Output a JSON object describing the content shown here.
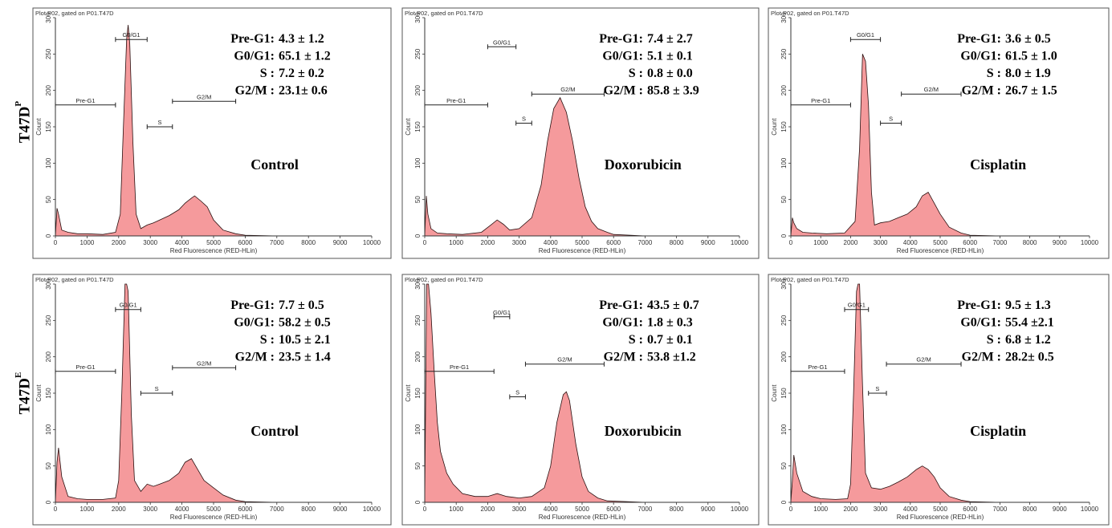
{
  "figure": {
    "rows": [
      {
        "label": "T47D",
        "superscript": "P"
      },
      {
        "label": "T47D",
        "superscript": "E"
      }
    ],
    "colors": {
      "histogram_fill": "#f59a9c",
      "histogram_stroke": "#2a1010",
      "frame": "#555555",
      "text": "#000000"
    }
  },
  "chart_data": [
    {
      "type": "area",
      "header": "Plot P02, gated on P01.T47D",
      "title": "Control",
      "xlabel": "Red Fluorescence (RED-HLin)",
      "ylabel": "Count",
      "xlim": [
        0,
        10000
      ],
      "ylim": [
        0,
        300
      ],
      "xticks": [
        "0",
        "1000",
        "2000",
        "3000",
        "4000",
        "5000",
        "6000",
        "7000",
        "8000",
        "9000",
        "10000"
      ],
      "yticks": [
        "0",
        "50",
        "100",
        "150",
        "200",
        "250",
        "300"
      ],
      "gates": [
        {
          "name": "Pre-G1",
          "start": 0,
          "end": 1900,
          "level": 180
        },
        {
          "name": "G0/G1",
          "start": 1900,
          "end": 2900,
          "level": 270
        },
        {
          "name": "S",
          "start": 2900,
          "end": 3700,
          "level": 150
        },
        {
          "name": "G2/M",
          "start": 3700,
          "end": 5700,
          "level": 185
        }
      ],
      "stats": [
        {
          "label": "Pre-G1:",
          "value": "4.3 ± 1.2"
        },
        {
          "label": "G0/G1:",
          "value": "65.1 ± 1.2"
        },
        {
          "label": "S :",
          "value": "7.2 ± 0.2"
        },
        {
          "label": "G2/M :",
          "value": "23.1± 0.6"
        }
      ],
      "x": [
        0,
        50,
        100,
        200,
        400,
        700,
        1000,
        1500,
        1900,
        2050,
        2150,
        2250,
        2300,
        2350,
        2450,
        2550,
        2700,
        2900,
        3100,
        3300,
        3600,
        3900,
        4100,
        4300,
        4400,
        4600,
        4800,
        5000,
        5300,
        5700,
        6000,
        7000,
        10000
      ],
      "y": [
        0,
        38,
        30,
        8,
        5,
        3,
        3,
        2,
        5,
        30,
        150,
        270,
        290,
        265,
        130,
        30,
        10,
        15,
        18,
        22,
        28,
        36,
        45,
        52,
        55,
        48,
        40,
        22,
        8,
        3,
        1,
        0,
        0
      ]
    },
    {
      "type": "area",
      "header": "Plot P02, gated on P01.T47D",
      "title": "Doxorubicin",
      "xlabel": "Red Fluorescence (RED-HLin)",
      "ylabel": "Count",
      "xlim": [
        0,
        10000
      ],
      "ylim": [
        0,
        300
      ],
      "xticks": [
        "0",
        "1000",
        "2000",
        "3000",
        "4000",
        "5000",
        "6000",
        "7000",
        "8000",
        "9000",
        "10000"
      ],
      "yticks": [
        "0",
        "50",
        "100",
        "150",
        "200",
        "250",
        "300"
      ],
      "gates": [
        {
          "name": "Pre-G1",
          "start": 0,
          "end": 2000,
          "level": 180
        },
        {
          "name": "G0/G1",
          "start": 2000,
          "end": 2900,
          "level": 260
        },
        {
          "name": "S",
          "start": 2900,
          "end": 3400,
          "level": 155
        },
        {
          "name": "G2/M",
          "start": 3400,
          "end": 5700,
          "level": 195
        }
      ],
      "stats": [
        {
          "label": "Pre-G1:",
          "value": "7.4 ± 2.7"
        },
        {
          "label": "G0/G1:",
          "value": "5.1 ± 0.1"
        },
        {
          "label": "S :",
          "value": "0.8 ± 0.0"
        },
        {
          "label": "G2/M :",
          "value": "85.8 ± 3.9"
        }
      ],
      "x": [
        0,
        50,
        100,
        200,
        400,
        700,
        1200,
        1800,
        2100,
        2300,
        2500,
        2700,
        3000,
        3400,
        3700,
        3900,
        4100,
        4300,
        4500,
        4700,
        4900,
        5100,
        5300,
        5500,
        5800,
        6000,
        7000,
        10000
      ],
      "y": [
        0,
        55,
        30,
        10,
        4,
        3,
        2,
        5,
        15,
        22,
        16,
        8,
        10,
        25,
        70,
        130,
        175,
        190,
        170,
        130,
        80,
        40,
        20,
        10,
        5,
        2,
        0,
        0
      ]
    },
    {
      "type": "area",
      "header": "Plot P02, gated on P01.T47D",
      "title": "Cisplatin",
      "xlabel": "Red Fluorescence (RED-HLin)",
      "ylabel": "Count",
      "xlim": [
        0,
        10000
      ],
      "ylim": [
        0,
        300
      ],
      "xticks": [
        "0",
        "1000",
        "2000",
        "3000",
        "4000",
        "5000",
        "6000",
        "7000",
        "8000",
        "9000",
        "10000"
      ],
      "yticks": [
        "0",
        "50",
        "100",
        "150",
        "200",
        "250",
        "300"
      ],
      "gates": [
        {
          "name": "Pre-G1",
          "start": 0,
          "end": 2000,
          "level": 180
        },
        {
          "name": "G0/G1",
          "start": 2000,
          "end": 3000,
          "level": 270
        },
        {
          "name": "S",
          "start": 3000,
          "end": 3700,
          "level": 155
        },
        {
          "name": "G2/M",
          "start": 3700,
          "end": 5700,
          "level": 195
        }
      ],
      "stats": [
        {
          "label": "Pre-G1:",
          "value": "3.6 ± 0.5"
        },
        {
          "label": "G0/G1:",
          "value": "61.5 ± 1.0"
        },
        {
          "label": "S :",
          "value": "8.0 ± 1.9"
        },
        {
          "label": "G2/M :",
          "value": "26.7 ± 1.5"
        }
      ],
      "x": [
        0,
        50,
        100,
        200,
        400,
        700,
        1200,
        1800,
        2150,
        2300,
        2400,
        2500,
        2600,
        2700,
        2800,
        3000,
        3300,
        3600,
        3900,
        4200,
        4400,
        4600,
        4800,
        5000,
        5300,
        5700,
        6000,
        7000,
        10000
      ],
      "y": [
        0,
        25,
        18,
        10,
        5,
        4,
        3,
        4,
        20,
        120,
        250,
        240,
        180,
        60,
        15,
        18,
        20,
        25,
        30,
        40,
        55,
        60,
        45,
        30,
        12,
        4,
        1,
        0,
        0
      ]
    },
    {
      "type": "area",
      "header": "Plot P02, gated on P01.T47D",
      "title": "Control",
      "xlabel": "Red Fluorescence (RED-HLin)",
      "ylabel": "Count",
      "xlim": [
        0,
        10000
      ],
      "ylim": [
        0,
        300
      ],
      "xticks": [
        "0",
        "1000",
        "2000",
        "3000",
        "4000",
        "5000",
        "6000",
        "7000",
        "8000",
        "9000",
        "10000"
      ],
      "yticks": [
        "0",
        "50",
        "100",
        "150",
        "200",
        "250",
        "300"
      ],
      "gates": [
        {
          "name": "Pre-G1",
          "start": 0,
          "end": 1900,
          "level": 180
        },
        {
          "name": "G0/G1",
          "start": 1900,
          "end": 2700,
          "level": 265
        },
        {
          "name": "S",
          "start": 2700,
          "end": 3700,
          "level": 150
        },
        {
          "name": "G2/M",
          "start": 3700,
          "end": 5700,
          "level": 185
        }
      ],
      "stats": [
        {
          "label": "Pre-G1:",
          "value": "7.7 ±  0.5"
        },
        {
          "label": "G0/G1:",
          "value": "58.2 ± 0.5"
        },
        {
          "label": "S :",
          "value": "10.5 ± 2.1"
        },
        {
          "label": "G2/M :",
          "value": "23.5 ± 1.4"
        }
      ],
      "x": [
        0,
        50,
        100,
        200,
        400,
        700,
        1000,
        1500,
        1900,
        2000,
        2100,
        2200,
        2250,
        2300,
        2400,
        2500,
        2700,
        2900,
        3100,
        3300,
        3600,
        3900,
        4100,
        4300,
        4500,
        4700,
        5000,
        5300,
        5700,
        6000,
        7000,
        10000
      ],
      "y": [
        0,
        55,
        75,
        35,
        8,
        5,
        4,
        4,
        6,
        30,
        150,
        300,
        310,
        290,
        120,
        30,
        15,
        25,
        22,
        25,
        30,
        40,
        55,
        60,
        45,
        30,
        20,
        10,
        3,
        1,
        0,
        0
      ]
    },
    {
      "type": "area",
      "header": "Plot P02, gated on P01.T47D",
      "title": "Doxorubicin",
      "xlabel": "Red Fluorescence (RED-HLin)",
      "ylabel": "Count",
      "xlim": [
        0,
        10000
      ],
      "ylim": [
        0,
        300
      ],
      "xticks": [
        "0",
        "1000",
        "2000",
        "3000",
        "4000",
        "5000",
        "6000",
        "7000",
        "8000",
        "9000",
        "10000"
      ],
      "yticks": [
        "0",
        "50",
        "100",
        "150",
        "200",
        "250",
        "300"
      ],
      "gates": [
        {
          "name": "Pre-G1",
          "start": 0,
          "end": 2200,
          "level": 180
        },
        {
          "name": "G0/G1",
          "start": 2200,
          "end": 2700,
          "level": 255
        },
        {
          "name": "S",
          "start": 2700,
          "end": 3200,
          "level": 145
        },
        {
          "name": "G2/M",
          "start": 3200,
          "end": 5700,
          "level": 190
        }
      ],
      "stats": [
        {
          "label": "Pre-G1:",
          "value": "43.5 ± 0.7"
        },
        {
          "label": "G0/G1:",
          "value": "1.8 ± 0.3"
        },
        {
          "label": "S :",
          "value": "0.7 ± 0.1"
        },
        {
          "label": "G2/M :",
          "value": "53.8 ±1.2"
        }
      ],
      "x": [
        0,
        60,
        120,
        200,
        300,
        400,
        500,
        700,
        900,
        1200,
        1600,
        2000,
        2300,
        2600,
        3000,
        3400,
        3800,
        4000,
        4200,
        4400,
        4500,
        4600,
        4800,
        5000,
        5200,
        5500,
        5800,
        7000,
        10000
      ],
      "y": [
        0,
        300,
        310,
        260,
        180,
        110,
        70,
        40,
        25,
        12,
        8,
        8,
        12,
        8,
        6,
        8,
        20,
        50,
        110,
        148,
        152,
        140,
        80,
        35,
        15,
        6,
        2,
        0,
        0
      ]
    },
    {
      "type": "area",
      "header": "Plot P02, gated on P01.T47D",
      "title": "Cisplatin",
      "xlabel": "Red Fluorescence (RED-HLin)",
      "ylabel": "Count",
      "xlim": [
        0,
        10000
      ],
      "ylim": [
        0,
        300
      ],
      "xticks": [
        "0",
        "1000",
        "2000",
        "3000",
        "4000",
        "5000",
        "6000",
        "7000",
        "8000",
        "9000",
        "10000"
      ],
      "yticks": [
        "0",
        "50",
        "100",
        "150",
        "200",
        "250",
        "300"
      ],
      "gates": [
        {
          "name": "Pre-G1",
          "start": 0,
          "end": 1800,
          "level": 180
        },
        {
          "name": "G0/G1",
          "start": 1800,
          "end": 2600,
          "level": 265
        },
        {
          "name": "S",
          "start": 2600,
          "end": 3200,
          "level": 150
        },
        {
          "name": "G2/M",
          "start": 3200,
          "end": 5700,
          "level": 190
        }
      ],
      "stats": [
        {
          "label": "Pre-G1:",
          "value": "9.5 ± 1.3"
        },
        {
          "label": "G0/G1:",
          "value": "55.4 ±2.1"
        },
        {
          "label": "S :",
          "value": "6.8 ± 1.2"
        },
        {
          "label": "G2/M :",
          "value": "28.2± 0.5"
        }
      ],
      "x": [
        0,
        50,
        100,
        200,
        400,
        700,
        1000,
        1500,
        1900,
        2000,
        2100,
        2200,
        2250,
        2300,
        2400,
        2500,
        2700,
        3000,
        3300,
        3600,
        3900,
        4200,
        4400,
        4600,
        4800,
        5000,
        5300,
        5700,
        6000,
        7000,
        10000
      ],
      "y": [
        0,
        30,
        65,
        40,
        15,
        8,
        5,
        4,
        5,
        25,
        150,
        290,
        310,
        300,
        160,
        40,
        20,
        18,
        22,
        28,
        35,
        45,
        50,
        45,
        35,
        20,
        8,
        3,
        1,
        0,
        0
      ]
    }
  ]
}
